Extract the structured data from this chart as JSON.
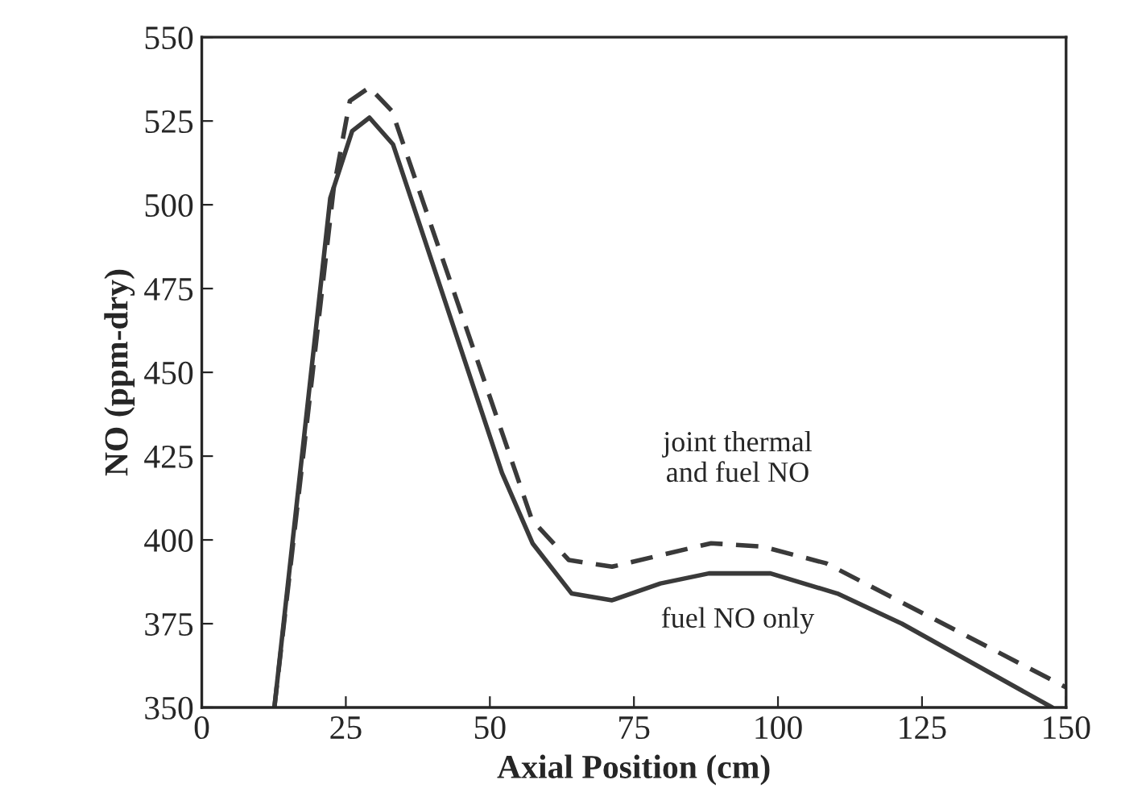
{
  "chart_data": {
    "type": "line",
    "xlabel": "Axial Position (cm)",
    "ylabel": "NO (ppm-dry)",
    "xlim": [
      0,
      150
    ],
    "xticks": [
      0,
      25,
      50,
      75,
      100,
      125,
      150
    ],
    "ylim": [
      350,
      550
    ],
    "yticks": [
      350,
      375,
      400,
      425,
      450,
      475,
      500,
      525,
      550
    ],
    "grid": false,
    "legend": false,
    "marker": "none",
    "series": [
      {
        "color": "#3a3a3a",
        "line_style": "solid",
        "x": [
          12.6,
          22.3,
          26.1,
          29.1,
          33.2,
          52.1,
          57.4,
          64.2,
          71.2,
          79.6,
          88,
          98.7,
          110.3,
          121.5,
          147.6
        ],
        "values": [
          350,
          502,
          522,
          526,
          518,
          420,
          399,
          384,
          382,
          387,
          390,
          390,
          384,
          375,
          350
        ]
      },
      {
        "color": "#3a3a3a",
        "line_style": "dashed",
        "x": [
          12.6,
          22.9,
          25.7,
          29.1,
          33,
          57.3,
          63.7,
          71.2,
          88.4,
          97.3,
          108.4,
          150
        ],
        "values": [
          350,
          505,
          531,
          535,
          528,
          406,
          394,
          392,
          399,
          398,
          393,
          356
        ]
      }
    ],
    "annotations": [
      "joint thermal\nand fuel NO",
      "fuel NO only"
    ]
  }
}
